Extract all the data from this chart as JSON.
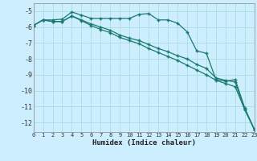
{
  "xlabel": "Humidex (Indice chaleur)",
  "bg_color": "#cceeff",
  "grid_color": "#aadddd",
  "line_color": "#1a7a6e",
  "xmin": 0,
  "xmax": 23,
  "ymin": -12.6,
  "ymax": -4.5,
  "yticks": [
    -5,
    -6,
    -7,
    -8,
    -9,
    -10,
    -11,
    -12
  ],
  "xticks": [
    0,
    1,
    2,
    3,
    4,
    5,
    6,
    7,
    8,
    9,
    10,
    11,
    12,
    13,
    14,
    15,
    16,
    17,
    18,
    19,
    20,
    21,
    22,
    23
  ],
  "line1_x": [
    0,
    1,
    2,
    3,
    4,
    5,
    6,
    7,
    8,
    9,
    10,
    11,
    12,
    13,
    14,
    15,
    16,
    17,
    18,
    19,
    20,
    21,
    22,
    23
  ],
  "line1_y": [
    -5.9,
    -5.55,
    -5.55,
    -5.5,
    -5.05,
    -5.25,
    -5.45,
    -5.45,
    -5.45,
    -5.45,
    -5.45,
    -5.2,
    -5.15,
    -5.55,
    -5.55,
    -5.75,
    -6.3,
    -7.5,
    -7.65,
    -9.3,
    -9.4,
    -9.3,
    -11.1,
    -12.45
  ],
  "line2_x": [
    0,
    1,
    2,
    3,
    4,
    5,
    6,
    7,
    8,
    9,
    10,
    11,
    12,
    13,
    14,
    15,
    16,
    17,
    18,
    19,
    20,
    21,
    22,
    23
  ],
  "line2_y": [
    -5.9,
    -5.55,
    -5.65,
    -5.65,
    -5.3,
    -5.55,
    -5.8,
    -6.0,
    -6.2,
    -6.5,
    -6.7,
    -6.85,
    -7.1,
    -7.35,
    -7.55,
    -7.8,
    -8.0,
    -8.35,
    -8.6,
    -9.2,
    -9.35,
    -9.45,
    -11.2,
    -12.45
  ],
  "line3_x": [
    0,
    1,
    2,
    3,
    4,
    5,
    6,
    7,
    8,
    9,
    10,
    11,
    12,
    13,
    14,
    15,
    16,
    17,
    18,
    19,
    20,
    21,
    22,
    23
  ],
  "line3_y": [
    -5.9,
    -5.55,
    -5.65,
    -5.65,
    -5.3,
    -5.6,
    -5.9,
    -6.15,
    -6.35,
    -6.65,
    -6.85,
    -7.05,
    -7.35,
    -7.6,
    -7.85,
    -8.1,
    -8.4,
    -8.7,
    -9.0,
    -9.35,
    -9.55,
    -9.75,
    -11.2,
    -12.45
  ]
}
